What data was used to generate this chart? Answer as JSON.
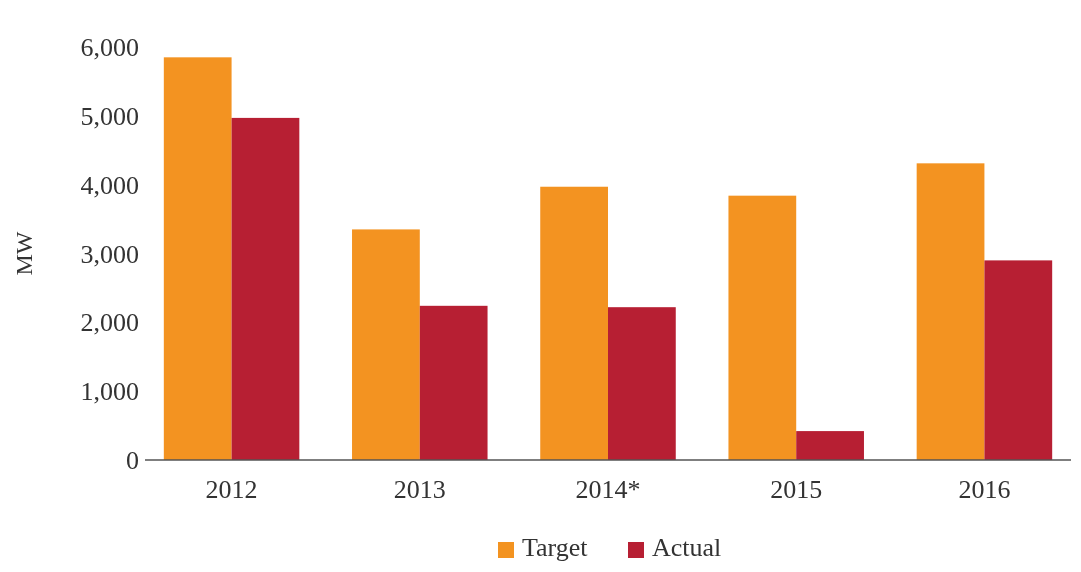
{
  "chart_data": {
    "type": "bar",
    "ylabel": "MW",
    "categories": [
      "2012",
      "2013",
      "2014*",
      "2015",
      "2016"
    ],
    "series": [
      {
        "name": "Target",
        "color": "#f39321",
        "values": [
          5850,
          3350,
          3970,
          3840,
          4310
        ]
      },
      {
        "name": "Actual",
        "color": "#b71f33",
        "values": [
          4970,
          2240,
          2220,
          420,
          2900
        ]
      }
    ],
    "ylim": [
      0,
      6000
    ],
    "yticks": [
      {
        "value": 0,
        "label": "0"
      },
      {
        "value": 1000,
        "label": "1,000"
      },
      {
        "value": 2000,
        "label": "2,000"
      },
      {
        "value": 3000,
        "label": "3,000"
      },
      {
        "value": 4000,
        "label": "4,000"
      },
      {
        "value": 5000,
        "label": "5,000"
      },
      {
        "value": 6000,
        "label": "6,000"
      }
    ],
    "grid": false,
    "legend": "bottom"
  }
}
